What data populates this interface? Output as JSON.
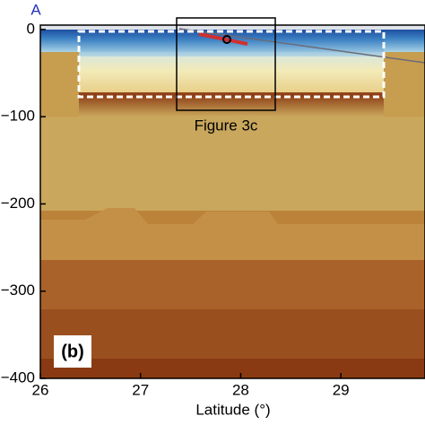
{
  "chart_data": {
    "type": "section",
    "xlabel": "Latitude (°)",
    "annotations": {
      "section": "A",
      "panel": "(b)",
      "box": "Figure 3c"
    },
    "xlim": [
      26,
      29.84
    ],
    "xticks": [
      26,
      27,
      28,
      29
    ],
    "ylim": [
      -400,
      5
    ],
    "yticks": [
      0,
      {
        "value": -100,
        "label": "−100"
      },
      {
        "value": -200,
        "label": "−200"
      },
      {
        "value": -300,
        "label": "−300"
      },
      {
        "value": -400,
        "label": "−400"
      }
    ]
  }
}
